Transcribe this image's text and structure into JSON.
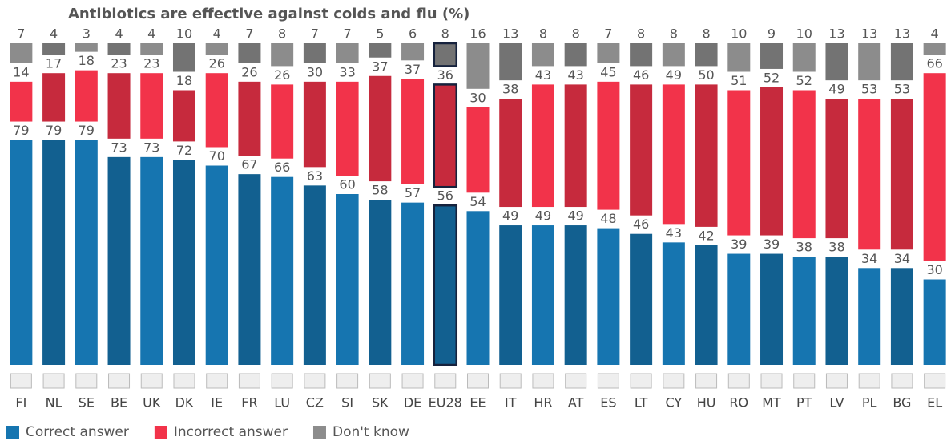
{
  "chart_data": {
    "type": "stacked-bar",
    "title": "Antibiotics are effective against colds and flu  (%)",
    "categories": [
      "FI",
      "NL",
      "SE",
      "BE",
      "UK",
      "DK",
      "IE",
      "FR",
      "LU",
      "CZ",
      "SI",
      "SK",
      "DE",
      "EU28",
      "EE",
      "IT",
      "HR",
      "AT",
      "ES",
      "LT",
      "CY",
      "HU",
      "RO",
      "MT",
      "PT",
      "LV",
      "PL",
      "BG",
      "EL"
    ],
    "highlight": "EU28",
    "legend": "bottom-left",
    "series": [
      {
        "name": "Correct answer",
        "color": "#1675b0",
        "values": [
          79,
          79,
          79,
          73,
          73,
          72,
          70,
          67,
          66,
          63,
          60,
          58,
          57,
          56,
          54,
          49,
          49,
          49,
          48,
          46,
          43,
          42,
          39,
          39,
          38,
          38,
          34,
          34,
          30
        ]
      },
      {
        "name": "Incorrect answer",
        "color": "#f2334a",
        "values": [
          14,
          17,
          18,
          23,
          23,
          18,
          26,
          26,
          26,
          30,
          33,
          37,
          37,
          36,
          30,
          38,
          43,
          43,
          45,
          46,
          49,
          50,
          51,
          52,
          52,
          49,
          53,
          53,
          66
        ]
      },
      {
        "name": "Don't know",
        "color": "#8c8c8c",
        "values": [
          7,
          4,
          3,
          4,
          4,
          10,
          4,
          7,
          8,
          7,
          7,
          5,
          6,
          8,
          16,
          13,
          8,
          8,
          7,
          8,
          8,
          8,
          10,
          9,
          10,
          13,
          13,
          13,
          4
        ]
      }
    ]
  }
}
